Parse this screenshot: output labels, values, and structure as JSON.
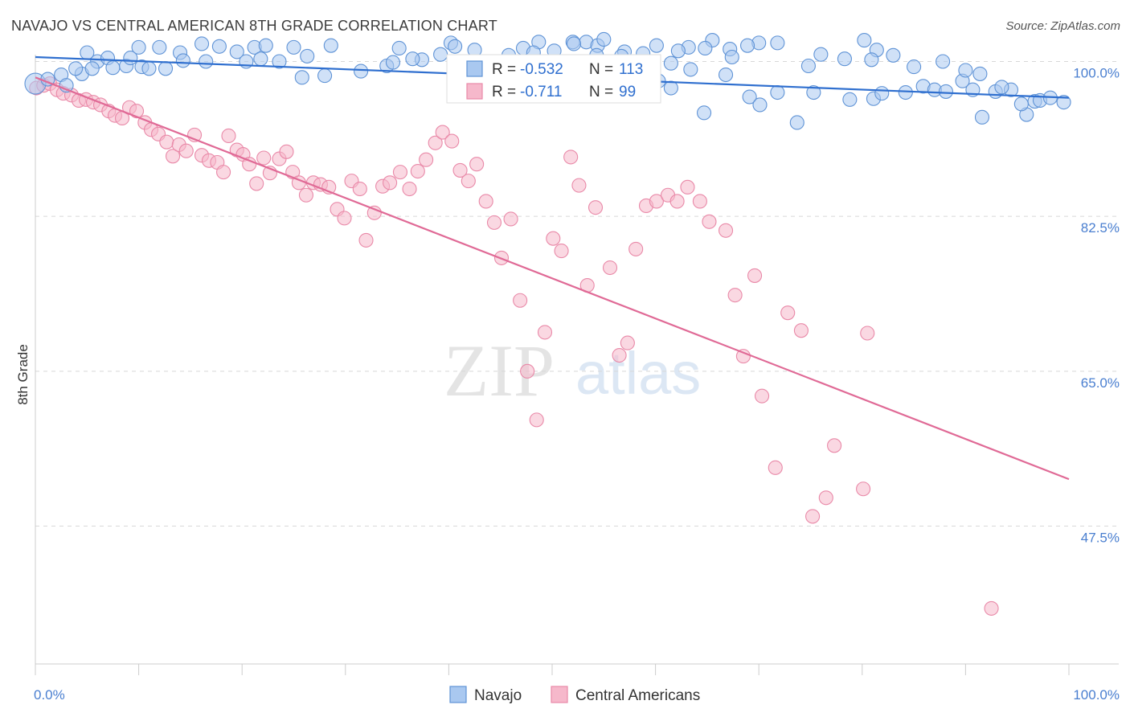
{
  "title": "NAVAJO VS CENTRAL AMERICAN 8TH GRADE CORRELATION CHART",
  "source": "Source: ZipAtlas.com",
  "watermark": {
    "zip": "ZIP",
    "atlas": "atlas"
  },
  "colors": {
    "navajo_fill": "#a9c8f0",
    "navajo_stroke": "#5f93d6",
    "navajo_line": "#2f6fcf",
    "central_fill": "#f6b8cb",
    "central_stroke": "#e989a8",
    "central_line": "#e06a96",
    "tick_text": "#4a7fd0",
    "grid": "#d8d8d8"
  },
  "legend": {
    "navajo": {
      "r_label": "R =",
      "r_value": "-0.532",
      "n_label": "N =",
      "n_value": "113"
    },
    "central": {
      "r_label": "R =",
      "r_value": "-0.711",
      "n_label": "N =",
      "n_value": "99"
    }
  },
  "chart_data": {
    "type": "scatter",
    "title": "NAVAJO VS CENTRAL AMERICAN 8TH GRADE CORRELATION CHART",
    "xlabel": "",
    "ylabel": "8th Grade",
    "xlim": [
      0,
      100
    ],
    "ylim": [
      32,
      102
    ],
    "x_tick_labels": [
      "0.0%",
      "100.0%"
    ],
    "y_ticks": [
      47.5,
      65.0,
      82.5,
      100.0
    ],
    "y_tick_labels": [
      "47.5%",
      "65.0%",
      "82.5%",
      "100.0%"
    ],
    "grid": true,
    "legend_position": "top-center",
    "series": [
      {
        "name": "Navajo",
        "regression": {
          "x": [
            0,
            100
          ],
          "y": [
            100.5,
            95.9
          ]
        },
        "points": [
          [
            0,
            97.5
          ],
          [
            1.2,
            98
          ],
          [
            2.5,
            98.5
          ],
          [
            3,
            97.3
          ],
          [
            4.5,
            98.6
          ],
          [
            3.9,
            99.2
          ],
          [
            5,
            101
          ],
          [
            6,
            100
          ],
          [
            5.5,
            99.2
          ],
          [
            7,
            100.4
          ],
          [
            7.5,
            99.3
          ],
          [
            8.8,
            99.5
          ],
          [
            9.2,
            100.4
          ],
          [
            10,
            101.6
          ],
          [
            10.3,
            99.4
          ],
          [
            11,
            99.2
          ],
          [
            12,
            101.6
          ],
          [
            12.6,
            99.2
          ],
          [
            14,
            101
          ],
          [
            14.3,
            100.1
          ],
          [
            16.1,
            102
          ],
          [
            16.5,
            100
          ],
          [
            17.8,
            101.7
          ],
          [
            19.5,
            101.1
          ],
          [
            20.4,
            100
          ],
          [
            21.2,
            101.6
          ],
          [
            21.8,
            100.3
          ],
          [
            22.3,
            101.8
          ],
          [
            23.6,
            100
          ],
          [
            25,
            101.6
          ],
          [
            25.8,
            98.2
          ],
          [
            26.3,
            100.6
          ],
          [
            28,
            98.4
          ],
          [
            28.6,
            101.8
          ],
          [
            31.5,
            98.9
          ],
          [
            34,
            99.5
          ],
          [
            35.2,
            101.5
          ],
          [
            37.4,
            100.2
          ],
          [
            40.2,
            102.1
          ],
          [
            40.6,
            101.7
          ],
          [
            42.5,
            100
          ],
          [
            45.3,
            96.5
          ],
          [
            46.6,
            98.5
          ],
          [
            47.2,
            101.5
          ],
          [
            48.7,
            102.2
          ],
          [
            50.6,
            98.4
          ],
          [
            52,
            102.2
          ],
          [
            53.3,
            102.2
          ],
          [
            54.4,
            101.8
          ],
          [
            55,
            102.5
          ],
          [
            57,
            101.1
          ],
          [
            60.3,
            97.8
          ],
          [
            61.5,
            97
          ],
          [
            61.5,
            99.8
          ],
          [
            63.4,
            99.1
          ],
          [
            64.7,
            94.2
          ],
          [
            65.5,
            102.4
          ],
          [
            67.2,
            101.4
          ],
          [
            69.1,
            96
          ],
          [
            70.1,
            95.1
          ],
          [
            71.8,
            96.5
          ],
          [
            73.7,
            93.1
          ],
          [
            74.8,
            99.5
          ],
          [
            75.3,
            96.5
          ],
          [
            78.8,
            95.7
          ],
          [
            80.2,
            102.4
          ],
          [
            81.1,
            95.8
          ],
          [
            81.9,
            96.4
          ],
          [
            84.2,
            96.5
          ],
          [
            85.9,
            97.2
          ],
          [
            87,
            96.8
          ],
          [
            88.1,
            96.6
          ],
          [
            89.7,
            97.8
          ],
          [
            90.7,
            96.8
          ],
          [
            91.4,
            98.6
          ],
          [
            91.6,
            93.7
          ],
          [
            92.9,
            96.6
          ],
          [
            94.4,
            96.8
          ],
          [
            95.9,
            94
          ],
          [
            96.7,
            95.5
          ],
          [
            97.2,
            95.6
          ],
          [
            98.2,
            95.9
          ],
          [
            99.5,
            95.4
          ],
          [
            95.4,
            95.2
          ],
          [
            93.5,
            97.1
          ],
          [
            90,
            99
          ],
          [
            87.8,
            100
          ],
          [
            85,
            99.4
          ],
          [
            83,
            100.7
          ],
          [
            81.4,
            101.3
          ],
          [
            80.9,
            100.2
          ],
          [
            78.3,
            100.3
          ],
          [
            76,
            100.8
          ],
          [
            71.8,
            102.1
          ],
          [
            70,
            102.1
          ],
          [
            68.9,
            101.8
          ],
          [
            67.4,
            100.5
          ],
          [
            66.8,
            98.5
          ],
          [
            64.8,
            101.5
          ],
          [
            63.2,
            101.6
          ],
          [
            62.2,
            101.2
          ],
          [
            60.1,
            101.8
          ],
          [
            58.8,
            100.9
          ],
          [
            56.7,
            100.6
          ],
          [
            54.3,
            100.7
          ],
          [
            52.1,
            102
          ],
          [
            50.2,
            101.2
          ],
          [
            48.2,
            101
          ],
          [
            45.8,
            100.7
          ],
          [
            42.5,
            101.3
          ],
          [
            39.2,
            100.8
          ],
          [
            36.5,
            100.3
          ],
          [
            34.6,
            99.9
          ]
        ]
      },
      {
        "name": "Central Americans",
        "regression": {
          "x": [
            0,
            100
          ],
          "y": [
            98.2,
            52.8
          ]
        },
        "points": [
          [
            0.1,
            97
          ],
          [
            0.8,
            97.3
          ],
          [
            1.4,
            97.5
          ],
          [
            2.1,
            96.8
          ],
          [
            2.7,
            96.4
          ],
          [
            3.5,
            96.2
          ],
          [
            4.2,
            95.6
          ],
          [
            4.9,
            95.7
          ],
          [
            5.6,
            95.4
          ],
          [
            6.3,
            95.1
          ],
          [
            7.1,
            94.4
          ],
          [
            7.7,
            93.9
          ],
          [
            8.4,
            93.6
          ],
          [
            9.1,
            94.8
          ],
          [
            9.8,
            94.4
          ],
          [
            10.6,
            93.1
          ],
          [
            11.2,
            92.3
          ],
          [
            11.9,
            91.8
          ],
          [
            12.7,
            90.9
          ],
          [
            13.3,
            89.3
          ],
          [
            13.9,
            90.6
          ],
          [
            14.6,
            89.9
          ],
          [
            15.4,
            91.7
          ],
          [
            16.1,
            89.4
          ],
          [
            16.8,
            88.8
          ],
          [
            17.6,
            88.6
          ],
          [
            18.2,
            87.5
          ],
          [
            18.7,
            91.6
          ],
          [
            19.5,
            90
          ],
          [
            20.1,
            89.5
          ],
          [
            20.7,
            88.4
          ],
          [
            21.4,
            86.2
          ],
          [
            22.1,
            89.1
          ],
          [
            22.7,
            87.4
          ],
          [
            23.6,
            89
          ],
          [
            24.3,
            89.8
          ],
          [
            24.9,
            87.5
          ],
          [
            25.5,
            86.3
          ],
          [
            26.2,
            84.9
          ],
          [
            26.9,
            86.3
          ],
          [
            27.6,
            86.1
          ],
          [
            28.4,
            85.8
          ],
          [
            29.2,
            83.3
          ],
          [
            29.9,
            82.3
          ],
          [
            30.6,
            86.5
          ],
          [
            31.4,
            85.6
          ],
          [
            32,
            79.8
          ],
          [
            32.8,
            82.9
          ],
          [
            33.6,
            85.9
          ],
          [
            34.3,
            86.3
          ],
          [
            35.3,
            87.5
          ],
          [
            36.2,
            85.6
          ],
          [
            37,
            87.6
          ],
          [
            37.8,
            88.9
          ],
          [
            38.7,
            90.8
          ],
          [
            39.4,
            92
          ],
          [
            40.3,
            91
          ],
          [
            41.1,
            87.7
          ],
          [
            41.9,
            86.5
          ],
          [
            42.7,
            88.4
          ],
          [
            43.6,
            84.2
          ],
          [
            44.4,
            81.8
          ],
          [
            45.1,
            77.8
          ],
          [
            46,
            82.2
          ],
          [
            46.9,
            73
          ],
          [
            47.6,
            65
          ],
          [
            48.5,
            59.5
          ],
          [
            49.3,
            69.4
          ],
          [
            50.1,
            80
          ],
          [
            50.9,
            78.6
          ],
          [
            51.8,
            89.2
          ],
          [
            52.6,
            86
          ],
          [
            53.4,
            74.7
          ],
          [
            54.2,
            83.5
          ],
          [
            55.6,
            76.7
          ],
          [
            56.5,
            66.8
          ],
          [
            57.3,
            68.2
          ],
          [
            58.1,
            78.8
          ],
          [
            59.1,
            83.7
          ],
          [
            60.1,
            84.2
          ],
          [
            61.2,
            84.9
          ],
          [
            62.1,
            84.2
          ],
          [
            63.1,
            85.8
          ],
          [
            64.3,
            84.2
          ],
          [
            65.2,
            81.9
          ],
          [
            66.8,
            80.9
          ],
          [
            67.7,
            73.6
          ],
          [
            68.5,
            66.7
          ],
          [
            69.6,
            75.8
          ],
          [
            70.3,
            62.2
          ],
          [
            71.6,
            54.1
          ],
          [
            72.8,
            71.6
          ],
          [
            74.1,
            69.6
          ],
          [
            75.2,
            48.6
          ],
          [
            76.5,
            50.7
          ],
          [
            80.1,
            51.7
          ],
          [
            80.5,
            69.3
          ],
          [
            92.5,
            38.2
          ],
          [
            77.3,
            56.6
          ]
        ]
      }
    ]
  },
  "bottom_legend": {
    "navajo_label": "Navajo",
    "central_label": "Central Americans"
  }
}
